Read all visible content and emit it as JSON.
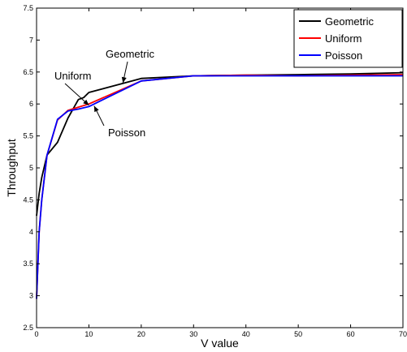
{
  "chart_data": {
    "type": "line",
    "xlabel": "V value",
    "ylabel": "Throughput",
    "xlim": [
      0,
      70
    ],
    "ylim": [
      2.5,
      7.5
    ],
    "xticks": [
      0,
      10,
      20,
      30,
      40,
      50,
      60,
      70
    ],
    "yticks": [
      2.5,
      3,
      3.5,
      4,
      4.5,
      5,
      5.5,
      6,
      6.5,
      7,
      7.5
    ],
    "grid": false,
    "legend_position": "top-right",
    "series": [
      {
        "name": "Geometric",
        "color": "#000000",
        "x": [
          0,
          0.5,
          1,
          2,
          4,
          6,
          8,
          9,
          10,
          20,
          30,
          40,
          50,
          60,
          70
        ],
        "y": [
          4.25,
          4.6,
          4.85,
          5.2,
          5.4,
          5.78,
          6.07,
          6.1,
          6.18,
          6.4,
          6.44,
          6.45,
          6.46,
          6.47,
          6.49
        ]
      },
      {
        "name": "Uniform",
        "color": "#ff0000",
        "x": [
          0,
          0.5,
          1,
          2,
          4,
          6,
          8,
          10,
          20,
          30,
          40,
          50,
          60,
          70
        ],
        "y": [
          2.95,
          4.0,
          4.5,
          5.2,
          5.75,
          5.9,
          5.95,
          6.0,
          6.36,
          6.44,
          6.45,
          6.44,
          6.45,
          6.46
        ]
      },
      {
        "name": "Poisson",
        "color": "#0000ff",
        "x": [
          0,
          0.5,
          1,
          2,
          4,
          6,
          8,
          10,
          20,
          30,
          40,
          50,
          60,
          70
        ],
        "y": [
          2.95,
          4.0,
          4.5,
          5.2,
          5.76,
          5.89,
          5.92,
          5.96,
          6.36,
          6.44,
          6.44,
          6.44,
          6.44,
          6.44
        ]
      }
    ],
    "annotations": [
      {
        "text": "Geometric",
        "point_to": [
          16.5,
          6.33
        ]
      },
      {
        "text": "Uniform",
        "point_to": [
          10,
          5.98
        ]
      },
      {
        "text": "Poisson",
        "point_to": [
          11,
          5.97
        ]
      }
    ]
  }
}
